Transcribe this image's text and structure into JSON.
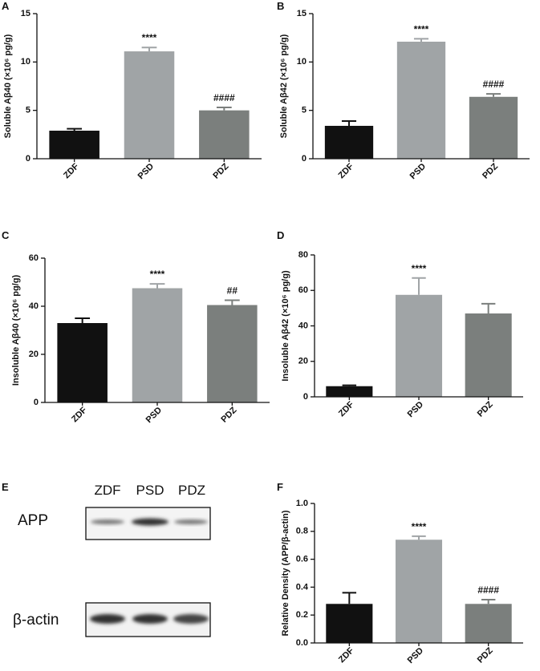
{
  "chart_data": [
    {
      "type": "bar",
      "panel": "A",
      "y_label": "Soluble Aβ40 (×10⁶ pg/g)",
      "categories": [
        "ZDF",
        "PSD",
        "PDZ"
      ],
      "values": [
        2.9,
        11.1,
        5.0
      ],
      "errors": [
        0.2,
        0.4,
        0.3
      ],
      "annotations": [
        null,
        "****",
        "####"
      ],
      "colors": [
        "#111111",
        "#a0a4a6",
        "#7b7f7d"
      ],
      "ylim": [
        0,
        15
      ],
      "yticks": [
        0,
        5,
        10,
        15
      ]
    },
    {
      "type": "bar",
      "panel": "B",
      "y_label": "Soluble Aβ42 (×10⁶ pg/g)",
      "categories": [
        "ZDF",
        "PSD",
        "PDZ"
      ],
      "values": [
        3.4,
        12.1,
        6.4
      ],
      "errors": [
        0.5,
        0.3,
        0.3
      ],
      "annotations": [
        null,
        "****",
        "####"
      ],
      "colors": [
        "#111111",
        "#a0a4a6",
        "#7b7f7d"
      ],
      "ylim": [
        0,
        15
      ],
      "yticks": [
        0,
        5,
        10,
        15
      ]
    },
    {
      "type": "bar",
      "panel": "C",
      "y_label": "Insoluble Aβ40 (×10⁶ pg/g)",
      "categories": [
        "ZDF",
        "PSD",
        "PDZ"
      ],
      "values": [
        33,
        47.5,
        40.5
      ],
      "errors": [
        2,
        1.8,
        2
      ],
      "annotations": [
        null,
        "****",
        "##"
      ],
      "colors": [
        "#111111",
        "#a0a4a6",
        "#7b7f7d"
      ],
      "ylim": [
        0,
        60
      ],
      "yticks": [
        0,
        20,
        40,
        60
      ]
    },
    {
      "type": "bar",
      "panel": "D",
      "y_label": "Insoluble Aβ42 (×10⁶ pg/g)",
      "categories": [
        "ZDF",
        "PSD",
        "PDZ"
      ],
      "values": [
        6,
        57.5,
        47
      ],
      "errors": [
        0.5,
        9.5,
        5.5
      ],
      "annotations": [
        null,
        "****",
        null
      ],
      "colors": [
        "#111111",
        "#a0a4a6",
        "#7b7f7d"
      ],
      "ylim": [
        0,
        80
      ],
      "yticks": [
        0,
        20,
        40,
        60,
        80
      ]
    },
    {
      "type": "bar",
      "panel": "F",
      "y_label": "Relative Density (APP/β-actin)",
      "categories": [
        "ZDF",
        "PSD",
        "PDZ"
      ],
      "values": [
        0.28,
        0.74,
        0.28
      ],
      "errors": [
        0.08,
        0.025,
        0.03
      ],
      "annotations": [
        null,
        "****",
        "####"
      ],
      "colors": [
        "#111111",
        "#a0a4a6",
        "#7b7f7d"
      ],
      "ylim": [
        0,
        1.0
      ],
      "yticks": [
        {
          "value": 0,
          "label": "0.0"
        },
        0.2,
        0.4,
        0.6,
        0.8,
        {
          "value": 1.0,
          "label": "1.0"
        }
      ]
    }
  ],
  "blot": {
    "panel": "E",
    "lanes": [
      "ZDF",
      "PSD",
      "PDZ"
    ],
    "rows": [
      "APP",
      "β-actin"
    ]
  }
}
